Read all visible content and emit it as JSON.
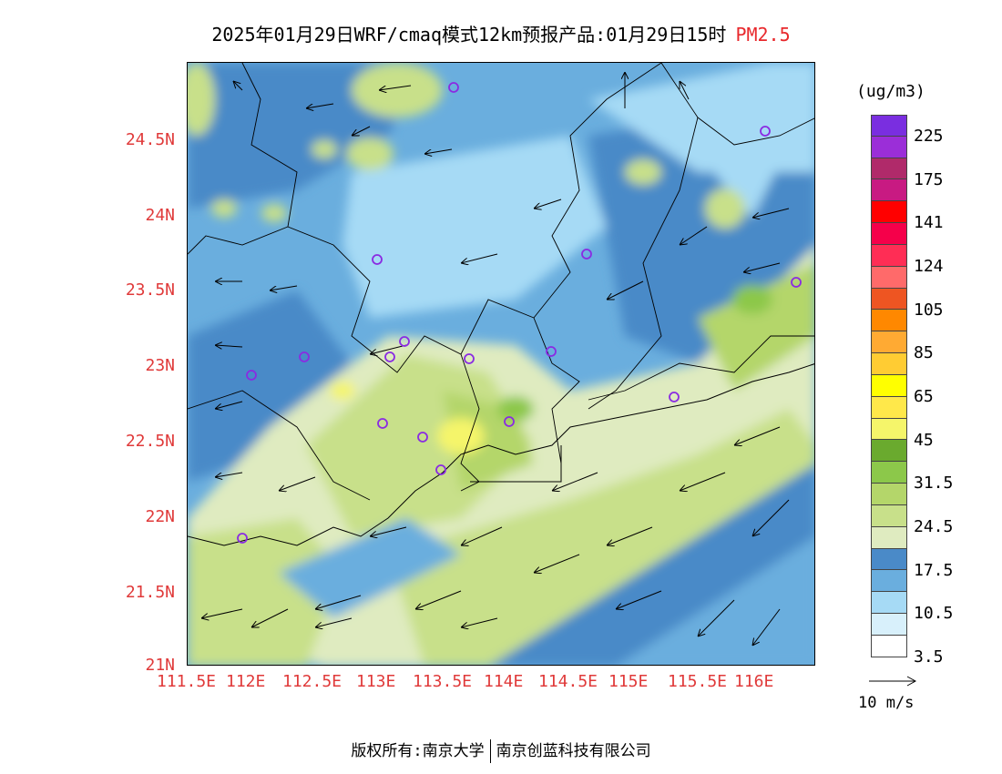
{
  "title": {
    "main": "2025年01月29日WRF/cmaq模式12km预报产品:01月29日15时",
    "pollutant": "PM2.5"
  },
  "colors": {
    "label_red": "#e03a3a",
    "pollutant_red": "#e8282c"
  },
  "axes": {
    "lat_labels": [
      "24.5N",
      "24N",
      "23.5N",
      "23N",
      "22.5N",
      "22N",
      "21.5N",
      "21N"
    ],
    "lon_labels": [
      "111.5E",
      "112E",
      "112.5E",
      "113E",
      "113.5E",
      "114E",
      "114.5E",
      "115E",
      "115.5E",
      "116E"
    ]
  },
  "colorbar": {
    "unit": "(ug/m3)",
    "colors": [
      "#7a2ee0",
      "#9b2ed8",
      "#b02a6a",
      "#c81a82",
      "#ff0000",
      "#f5004a",
      "#ff2d55",
      "#ff6a6a",
      "#ee5522",
      "#ff8800",
      "#ffaa33",
      "#ffcc33",
      "#ffff00",
      "#ffe84a",
      "#f5f56a",
      "#6aaa2e",
      "#8cc84a",
      "#b4d66a",
      "#c8e08a",
      "#dfebc0",
      "#4a8ac8",
      "#6aaede",
      "#a6daf5",
      "#d8f0fb",
      "#ffffff"
    ],
    "labels": [
      "225",
      "175",
      "141",
      "124",
      "105",
      "85",
      "65",
      "45",
      "31.5",
      "24.5",
      "17.5",
      "10.5",
      "3.5"
    ]
  },
  "wind_reference": {
    "label": "10 m/s"
  },
  "footer": {
    "copyright": "版权所有:南京大学",
    "company": "南京创蓝科技有限公司"
  }
}
